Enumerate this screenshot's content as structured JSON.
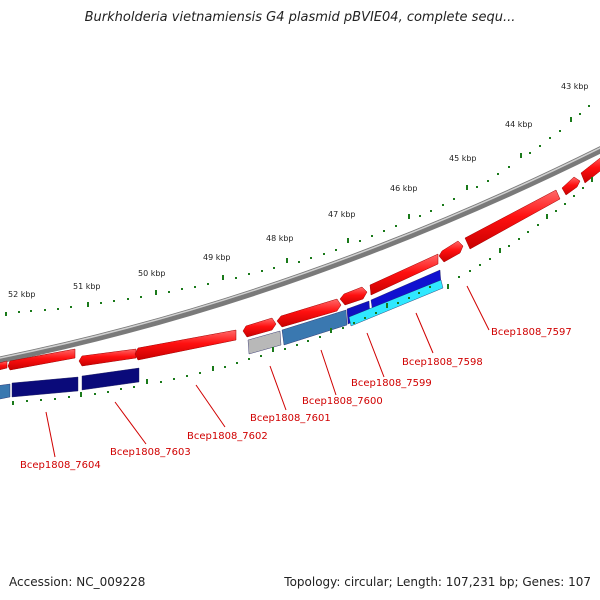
{
  "title": "Burkholderia vietnamiensis G4 plasmid pBVIE04, complete sequ...",
  "footer": {
    "accession": "Accession: NC_009228",
    "summary": "Topology: circular; Length: 107,231 bp; Genes: 107"
  },
  "kbp_labels": [
    "43 kbp",
    "44 kbp",
    "45 kbp",
    "46 kbp",
    "47 kbp",
    "48 kbp",
    "49 kbp",
    "50 kbp",
    "51 kbp",
    "52 kbp"
  ],
  "gene_labels": [
    "Bcep1808_7597",
    "Bcep1808_7598",
    "Bcep1808_7599",
    "Bcep1808_7600",
    "Bcep1808_7601",
    "Bcep1808_7602",
    "Bcep1808_7603",
    "Bcep1808_7604"
  ],
  "colors": {
    "backbone": "#8a8a8a",
    "cds_forward": "#ff1a1a",
    "tick_marks": "#1a7a1a",
    "label_text": "#d00000",
    "gene_blue": "#0a0a7a",
    "gene_steel": "#3a78b0",
    "gene_cyan": "#30e8ff",
    "gene_gray": "#b8b8b8"
  }
}
